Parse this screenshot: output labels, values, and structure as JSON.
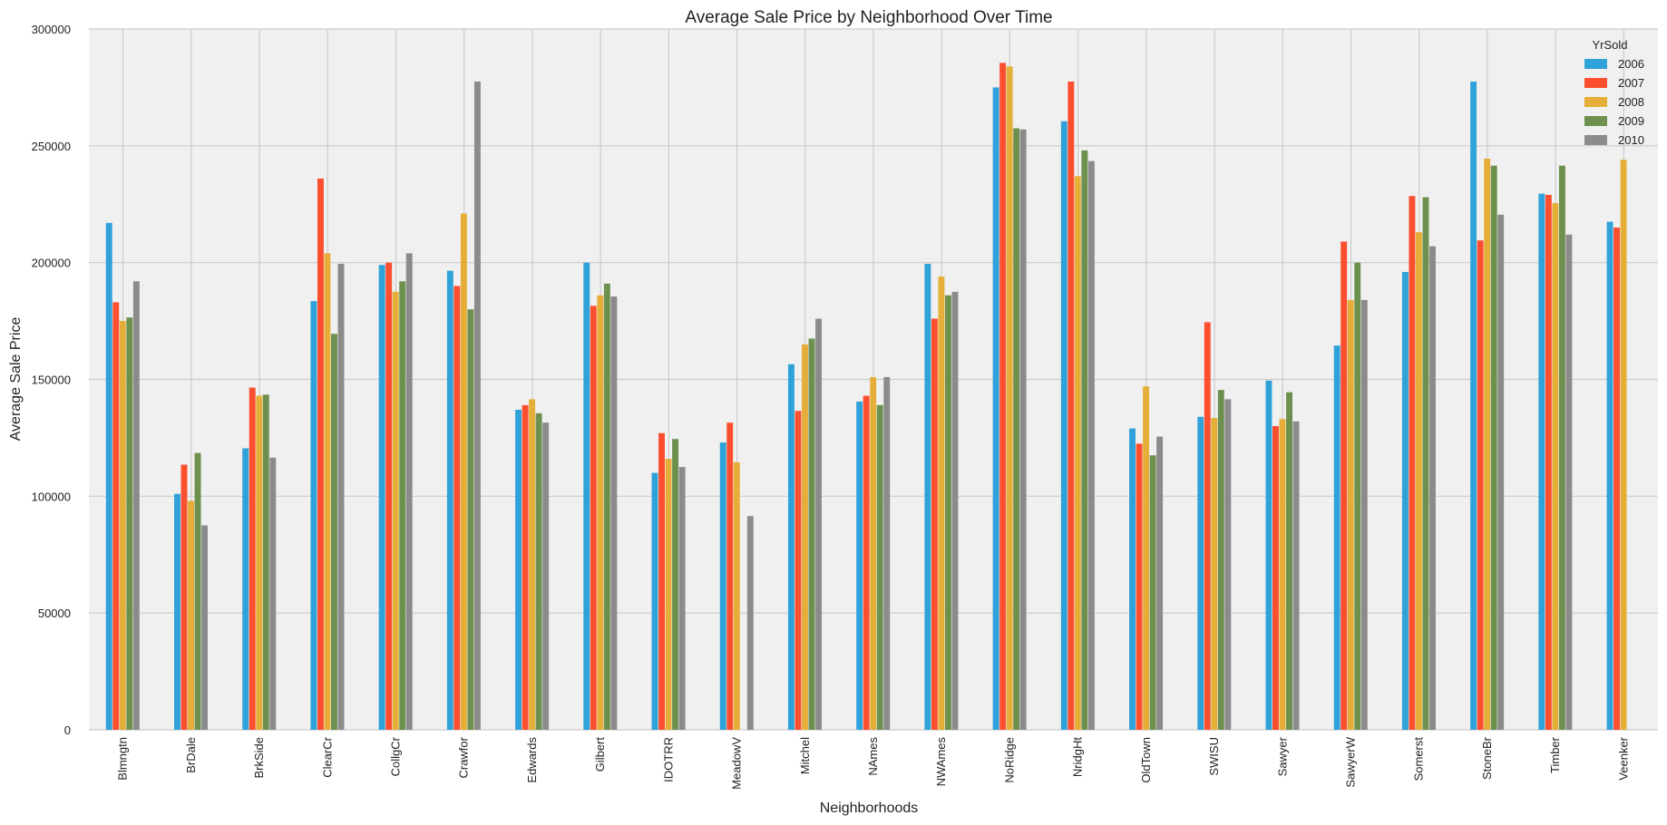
{
  "chart_data": {
    "type": "bar",
    "title": "Average Sale Price by Neighborhood Over Time",
    "xlabel": "Neighborhoods",
    "ylabel": "Average Sale Price",
    "ylim": [
      0,
      300000
    ],
    "yticks": [
      0,
      50000,
      100000,
      150000,
      200000,
      250000,
      300000
    ],
    "grid": true,
    "legend": {
      "title": "YrSold",
      "position": "top-right"
    },
    "categories": [
      "Blmngtn",
      "BrDale",
      "BrkSide",
      "ClearCr",
      "CollgCr",
      "Crawfor",
      "Edwards",
      "Gilbert",
      "IDOTRR",
      "MeadowV",
      "Mitchel",
      "NAmes",
      "NWAmes",
      "NoRidge",
      "NridgHt",
      "OldTown",
      "SWISU",
      "Sawyer",
      "SawyerW",
      "Somerst",
      "StoneBr",
      "Timber",
      "Veenker"
    ],
    "series": [
      {
        "name": "2006",
        "color": "#30a2da",
        "values": [
          217000,
          101000,
          120500,
          183500,
          199000,
          196500,
          137000,
          200000,
          110000,
          123000,
          156500,
          140500,
          199500,
          275000,
          260500,
          129000,
          134000,
          149500,
          164500,
          196000,
          277500,
          229500,
          217500
        ]
      },
      {
        "name": "2007",
        "color": "#fc4f30",
        "values": [
          183000,
          113500,
          146500,
          236000,
          200000,
          190000,
          139000,
          181500,
          127000,
          131500,
          136500,
          143000,
          176000,
          285500,
          277500,
          122500,
          174500,
          130000,
          209000,
          228500,
          209500,
          229000,
          215000
        ]
      },
      {
        "name": "2008",
        "color": "#e5ae38",
        "values": [
          175000,
          98000,
          143000,
          204000,
          187500,
          221000,
          141500,
          186000,
          116000,
          114500,
          165000,
          151000,
          194000,
          284000,
          237000,
          147000,
          133500,
          133000,
          184000,
          213000,
          244500,
          225500,
          244000
        ]
      },
      {
        "name": "2009",
        "color": "#6d904f",
        "values": [
          176500,
          118500,
          143500,
          169500,
          192000,
          180000,
          135500,
          191000,
          124500,
          null,
          167500,
          139000,
          186000,
          257500,
          248000,
          117500,
          145500,
          144500,
          200000,
          228000,
          241500,
          241500,
          null
        ]
      },
      {
        "name": "2010",
        "color": "#8b8b8b",
        "values": [
          192000,
          87500,
          116500,
          199500,
          204000,
          277500,
          131500,
          185500,
          112500,
          91500,
          176000,
          151000,
          187500,
          257000,
          243500,
          125500,
          141500,
          132000,
          184000,
          207000,
          220500,
          212000,
          null
        ]
      }
    ]
  }
}
